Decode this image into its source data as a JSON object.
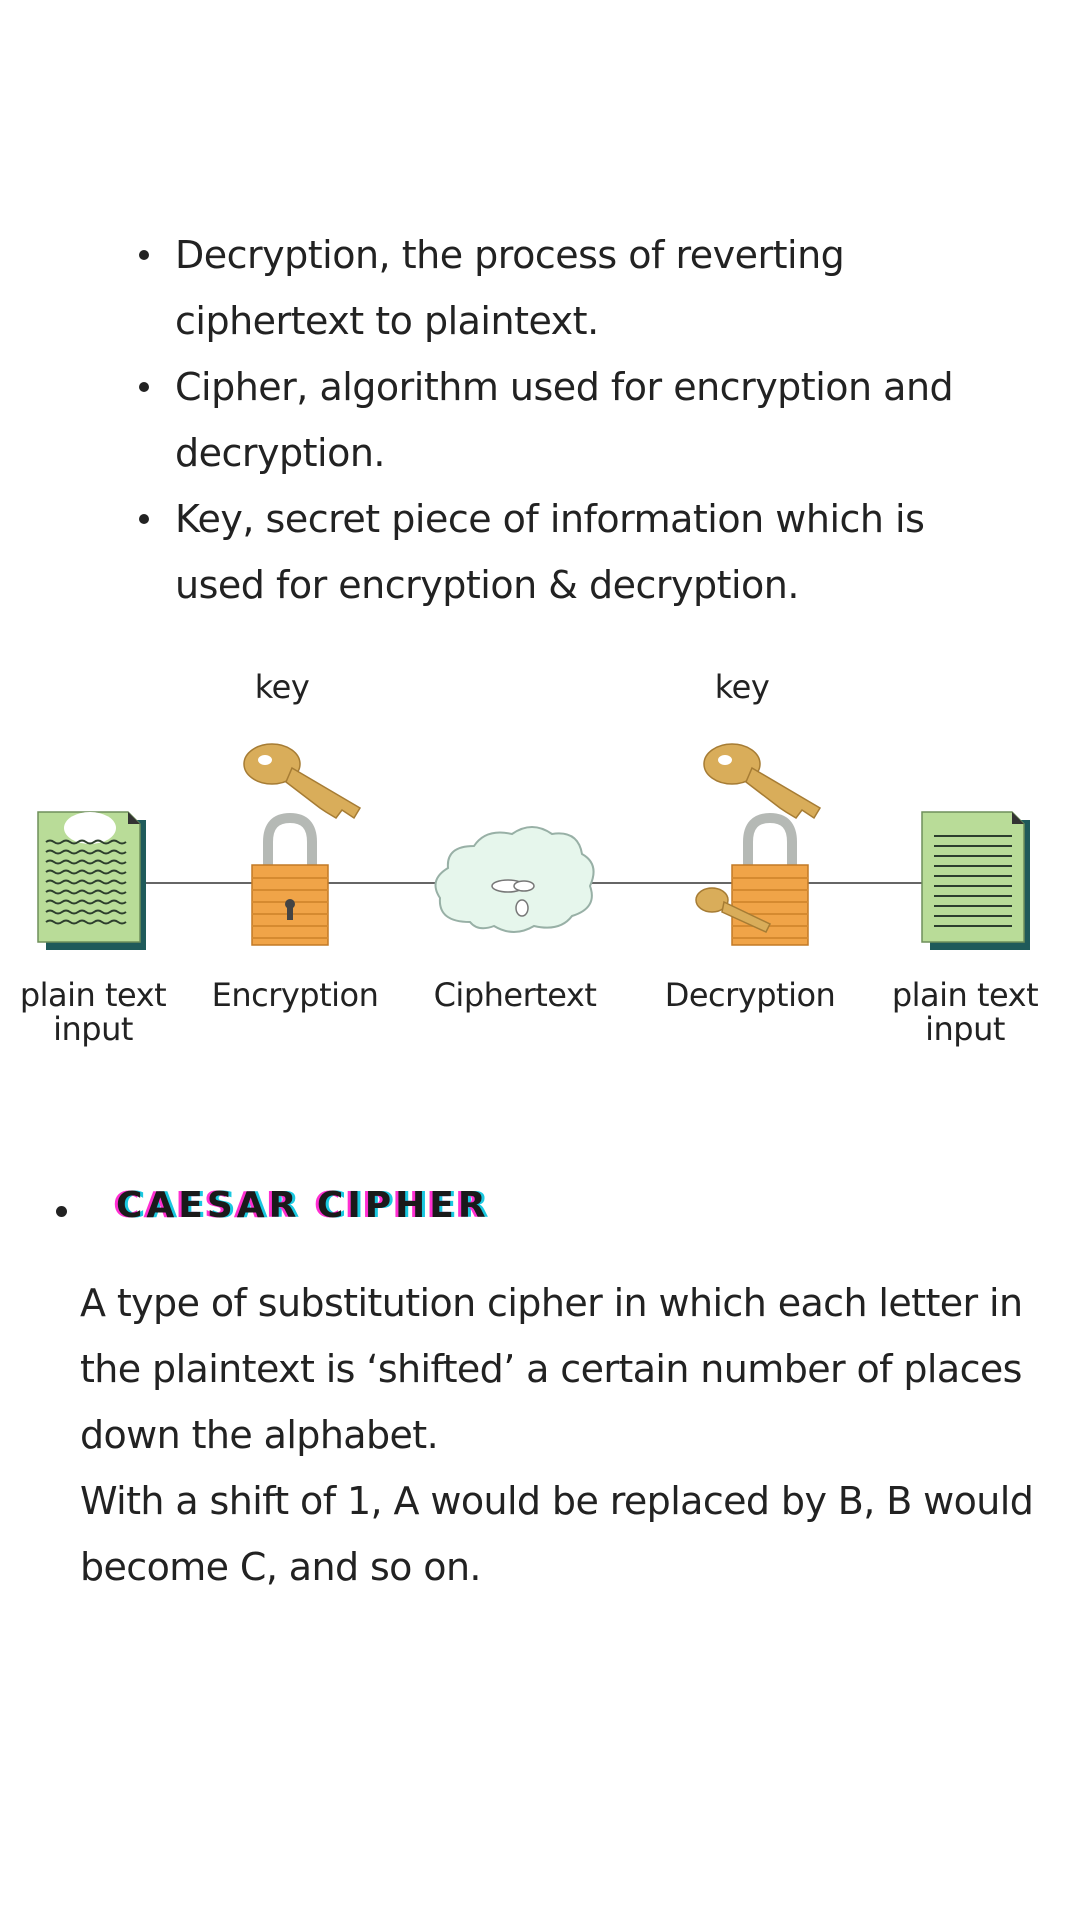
{
  "definitions": [
    "Decryption, the process of reverting ciphertext to plaintext.",
    "Cipher, algorithm used for encryption and decryption.",
    "Key, secret piece of information which is used for encryption & decryption."
  ],
  "diagram": {
    "key_label_left": "key",
    "key_label_right": "key",
    "stages": {
      "plain_input_1": "plain text input",
      "encryption": "Encryption",
      "ciphertext": "Ciphertext",
      "decryption": "Decryption",
      "plain_input_2": "plain text input"
    },
    "icons": [
      "document-icon",
      "key-icon",
      "padlock-icon",
      "cloud-icon",
      "key-icon",
      "padlock-icon",
      "document-icon"
    ]
  },
  "section": {
    "title": "CAESAR CIPHER",
    "paragraph_1": "A type of substitution cipher in which each letter in the plaintext is ‘shifted’ a certain number of places down the alphabet.",
    "paragraph_2": "With a shift of 1, A would be replaced by B, B would become C, and so on."
  },
  "colors": {
    "document_green": "#b9dc98",
    "document_shadow": "#1f5a5a",
    "key_gold": "#d9ad5a",
    "lock_orange": "#f0a448",
    "title_pink": "#ff2fd2",
    "title_cyan": "#19c8e0"
  }
}
